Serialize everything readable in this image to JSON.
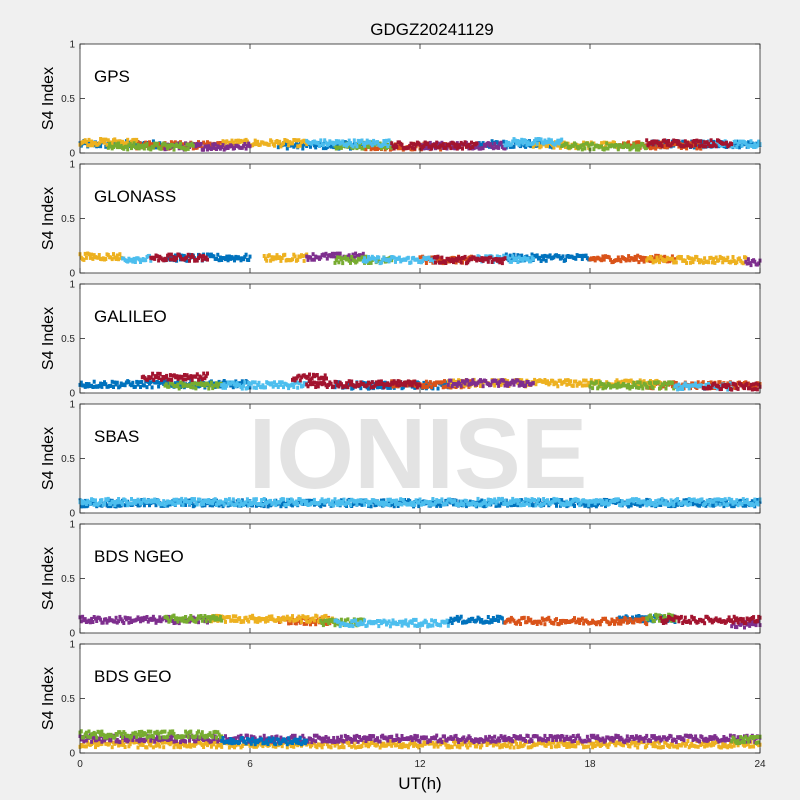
{
  "title": "GDGZ20241129",
  "xlabel": "UT(h)",
  "ylabel": "S4 Index",
  "watermark": "IONISE",
  "palette": [
    "#0072BD",
    "#D95319",
    "#EDB120",
    "#7E2F8E",
    "#77AC30",
    "#4DBEEE",
    "#A2142F"
  ],
  "chart_data": [
    {
      "type": "scatter",
      "label": "GPS",
      "xlim": [
        0,
        24
      ],
      "ylim": [
        0,
        1
      ],
      "xticks": [
        0,
        6,
        12,
        18,
        24
      ],
      "yticks": [
        0,
        0.5,
        1
      ],
      "ytick_labels": [
        "0",
        "0.5",
        "1"
      ],
      "series": [
        {
          "color_index": 0,
          "segments": [
            [
              0,
              3,
              0.08
            ],
            [
              7,
              10,
              0.07
            ],
            [
              14,
              17,
              0.08
            ],
            [
              20,
              24,
              0.08
            ]
          ]
        },
        {
          "color_index": 1,
          "segments": [
            [
              2,
              5,
              0.07
            ],
            [
              10,
              13,
              0.06
            ],
            [
              19,
              22,
              0.07
            ]
          ]
        },
        {
          "color_index": 2,
          "segments": [
            [
              0,
              2,
              0.1
            ],
            [
              5,
              8,
              0.09
            ],
            [
              16,
              19,
              0.07
            ]
          ]
        },
        {
          "color_index": 3,
          "segments": [
            [
              3,
              6,
              0.06
            ],
            [
              12,
              15,
              0.07
            ]
          ]
        },
        {
          "color_index": 4,
          "segments": [
            [
              1,
              4,
              0.06
            ],
            [
              9,
              11,
              0.07
            ],
            [
              17,
              20,
              0.06
            ]
          ]
        },
        {
          "color_index": 5,
          "segments": [
            [
              8,
              11,
              0.09
            ],
            [
              15,
              17,
              0.1
            ],
            [
              22,
              24,
              0.08
            ]
          ]
        },
        {
          "color_index": 6,
          "segments": [
            [
              11,
              14,
              0.07
            ],
            [
              20,
              23,
              0.09
            ]
          ]
        }
      ]
    },
    {
      "type": "scatter",
      "label": "GLONASS",
      "xlim": [
        0,
        24
      ],
      "ylim": [
        0,
        1
      ],
      "xticks": [
        0,
        6,
        12,
        18,
        24
      ],
      "yticks": [
        0,
        0.5,
        1
      ],
      "ytick_labels": [
        "0",
        "0.5",
        "1"
      ],
      "series": [
        {
          "color_index": 0,
          "segments": [
            [
              3,
              6,
              0.14
            ],
            [
              15,
              18,
              0.14
            ]
          ]
        },
        {
          "color_index": 1,
          "segments": [
            [
              12,
              14,
              0.12
            ],
            [
              18,
              21,
              0.13
            ]
          ]
        },
        {
          "color_index": 2,
          "segments": [
            [
              0,
              1.5,
              0.15
            ],
            [
              6.5,
              8,
              0.14
            ],
            [
              20,
              23.5,
              0.12
            ]
          ]
        },
        {
          "color_index": 3,
          "segments": [
            [
              8,
              10,
              0.15
            ],
            [
              23.5,
              24,
              0.1
            ]
          ]
        },
        {
          "color_index": 4,
          "segments": [
            [
              9,
              11,
              0.12
            ]
          ]
        },
        {
          "color_index": 5,
          "segments": [
            [
              1.5,
              2.5,
              0.13
            ],
            [
              10,
              12.5,
              0.12
            ],
            [
              14,
              16,
              0.13
            ]
          ]
        },
        {
          "color_index": 6,
          "segments": [
            [
              2.5,
              4.5,
              0.14
            ],
            [
              12.5,
              15,
              0.12
            ]
          ]
        }
      ]
    },
    {
      "type": "scatter",
      "label": "GALILEO",
      "xlim": [
        0,
        24
      ],
      "ylim": [
        0,
        1
      ],
      "xticks": [
        0,
        6,
        12,
        18,
        24
      ],
      "yticks": [
        0,
        0.5,
        1
      ],
      "ytick_labels": [
        "0",
        "0.5",
        "1"
      ],
      "series": [
        {
          "color_index": 0,
          "segments": [
            [
              0,
              6,
              0.08
            ],
            [
              9,
              13,
              0.07
            ]
          ]
        },
        {
          "color_index": 1,
          "segments": [
            [
              11,
              14,
              0.08
            ],
            [
              20,
              24,
              0.07
            ]
          ]
        },
        {
          "color_index": 2,
          "segments": [
            [
              13,
              20.5,
              0.09
            ]
          ]
        },
        {
          "color_index": 3,
          "segments": [
            [
              13,
              16,
              0.09
            ]
          ]
        },
        {
          "color_index": 4,
          "segments": [
            [
              3,
              5,
              0.07
            ],
            [
              18,
              21,
              0.07
            ]
          ]
        },
        {
          "color_index": 5,
          "segments": [
            [
              5,
              8,
              0.07
            ],
            [
              21,
              23,
              0.06
            ]
          ]
        },
        {
          "color_index": 6,
          "segments": [
            [
              2.2,
              4.5,
              0.15
            ],
            [
              7.5,
              8.7,
              0.14
            ],
            [
              8,
              12,
              0.08
            ],
            [
              22,
              24,
              0.06
            ]
          ]
        }
      ]
    },
    {
      "type": "scatter",
      "label": "SBAS",
      "xlim": [
        0,
        24
      ],
      "ylim": [
        0,
        1
      ],
      "xticks": [
        0,
        6,
        12,
        18,
        24
      ],
      "yticks": [
        0,
        0.5,
        1
      ],
      "ytick_labels": [
        "0",
        "0.5",
        "1"
      ],
      "series": [
        {
          "color_index": 0,
          "segments": [
            [
              0,
              24,
              0.09
            ]
          ]
        },
        {
          "color_index": 5,
          "segments": [
            [
              0,
              24,
              0.1
            ]
          ]
        }
      ]
    },
    {
      "type": "scatter",
      "label": "BDS NGEO",
      "xlim": [
        0,
        24
      ],
      "ylim": [
        0,
        1
      ],
      "xticks": [
        0,
        6,
        12,
        18,
        24
      ],
      "yticks": [
        0,
        0.5,
        1
      ],
      "ytick_labels": [
        "0",
        "0.5",
        "1"
      ],
      "series": [
        {
          "color_index": 0,
          "segments": [
            [
              13,
              15,
              0.12
            ],
            [
              19,
              21,
              0.13
            ]
          ]
        },
        {
          "color_index": 1,
          "segments": [
            [
              7,
              9,
              0.11
            ],
            [
              15,
              20,
              0.11
            ]
          ]
        },
        {
          "color_index": 2,
          "segments": [
            [
              4.5,
              9,
              0.13
            ]
          ]
        },
        {
          "color_index": 3,
          "segments": [
            [
              0,
              4.5,
              0.12
            ],
            [
              23,
              24,
              0.08
            ]
          ]
        },
        {
          "color_index": 4,
          "segments": [
            [
              3,
              5,
              0.13
            ],
            [
              8.5,
              10,
              0.1
            ],
            [
              20,
              21,
              0.14
            ]
          ]
        },
        {
          "color_index": 5,
          "segments": [
            [
              9,
              13,
              0.09
            ]
          ]
        },
        {
          "color_index": 6,
          "segments": [
            [
              20.5,
              24,
              0.12
            ]
          ]
        }
      ]
    },
    {
      "type": "scatter",
      "label": "BDS GEO",
      "xlim": [
        0,
        24
      ],
      "ylim": [
        0,
        1
      ],
      "xticks": [
        0,
        6,
        12,
        18,
        24
      ],
      "yticks": [
        0,
        0.5,
        1
      ],
      "ytick_labels": [
        "0",
        "0.5",
        "1"
      ],
      "series": [
        {
          "color_index": 2,
          "segments": [
            [
              0,
              24,
              0.08
            ]
          ]
        },
        {
          "color_index": 3,
          "segments": [
            [
              0,
              24,
              0.13
            ]
          ]
        },
        {
          "color_index": 4,
          "segments": [
            [
              0,
              5,
              0.17
            ],
            [
              23,
              24,
              0.12
            ]
          ]
        },
        {
          "color_index": 0,
          "segments": [
            [
              5,
              8,
              0.11
            ]
          ]
        }
      ]
    }
  ]
}
